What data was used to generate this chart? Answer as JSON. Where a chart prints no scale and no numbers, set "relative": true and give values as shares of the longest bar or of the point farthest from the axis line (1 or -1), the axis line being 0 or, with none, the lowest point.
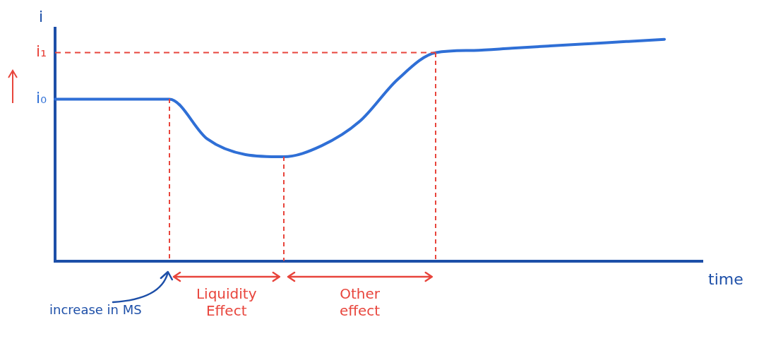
{
  "chart_data": {
    "type": "line",
    "relative": true,
    "xlabel": "time",
    "ylabel": "i",
    "categories": [
      null,
      null,
      null,
      null,
      null,
      null,
      null,
      null,
      null,
      null,
      null,
      null,
      null,
      null,
      null,
      null,
      null,
      null
    ],
    "series": [
      {
        "color": "#2f6fd6",
        "values": [
          0.73,
          0.73,
          0.73,
          0.73,
          0.55,
          0.48,
          0.47,
          0.52,
          0.63,
          0.82,
          0.94,
          0.95,
          0.96,
          0.97,
          0.98,
          0.99,
          1.0,
          null
        ]
      }
    ],
    "ref_lines": [
      {
        "axis": "y",
        "value": 0.94,
        "label": "i₁",
        "color": "#e8453c",
        "line_style": "dashed"
      }
    ],
    "annotations": [
      "i₀",
      "increase in MS",
      "Liquidity Effect",
      "Other effect"
    ],
    "grid": false,
    "legend": false,
    "marker": "none",
    "line_style": "solid"
  }
}
